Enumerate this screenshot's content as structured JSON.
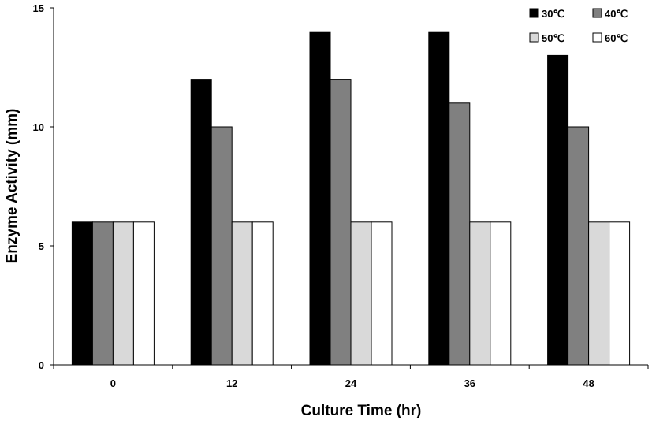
{
  "chart_data": {
    "type": "bar",
    "xlabel": "Culture Time (hr)",
    "ylabel": "Enzyme Activity (mm)",
    "categories": [
      "0",
      "12",
      "24",
      "36",
      "48"
    ],
    "ylim": [
      0,
      15
    ],
    "yticks": [
      "0",
      "5",
      "10",
      "15"
    ],
    "grid": false,
    "legend_position": "top-right",
    "series": [
      {
        "name": "30℃",
        "color": "#000000",
        "values": [
          6,
          12,
          14,
          14,
          13
        ]
      },
      {
        "name": "40℃",
        "color": "#808080",
        "values": [
          6,
          10,
          12,
          11,
          10
        ]
      },
      {
        "name": "50℃",
        "color": "#d9d9d9",
        "values": [
          6,
          6,
          6,
          6,
          6
        ]
      },
      {
        "name": "60℃",
        "color": "#ffffff",
        "values": [
          6,
          6,
          6,
          6,
          6
        ]
      }
    ]
  }
}
